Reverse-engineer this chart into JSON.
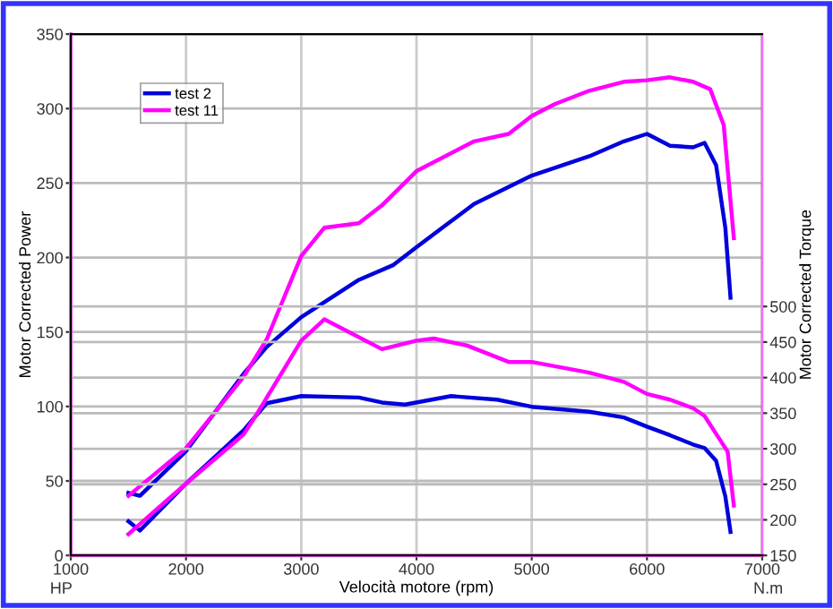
{
  "chart_data": {
    "type": "line",
    "xlabel": "Velocità motore (rpm)",
    "ylabel": "Motor Corrected Power",
    "y2label": "Motor Corrected Torque",
    "annotations": [
      "HP",
      "N.m"
    ],
    "xlim": [
      1000,
      7000
    ],
    "xticks": [
      1000,
      2000,
      3000,
      4000,
      5000,
      6000,
      7000
    ],
    "ylim": [
      0,
      350
    ],
    "yticks": [
      0,
      50,
      100,
      150,
      200,
      250,
      300,
      350
    ],
    "y2lim": [
      150,
      883
    ],
    "y2ticks": [
      150,
      200,
      250,
      300,
      350,
      400,
      450,
      500
    ],
    "grid": true,
    "legend": "top left",
    "marker": "none",
    "line_style": "solid",
    "series": [
      {
        "name": "test 2",
        "color": "#0000dd",
        "x": [
          1500,
          1600,
          2000,
          2500,
          2700,
          3000,
          3500,
          3800,
          4000,
          4500,
          5000,
          5500,
          5800,
          6000,
          6200,
          6400,
          6500,
          6600,
          6680,
          6725
        ],
        "values": [
          42,
          40,
          70,
          122,
          140,
          160,
          185,
          195,
          207,
          236,
          255,
          268,
          278,
          283,
          275,
          274,
          277,
          262,
          220,
          173
        ]
      },
      {
        "name": "test 11",
        "color": "#ff00ff",
        "x": [
          1500,
          2000,
          2500,
          2700,
          3000,
          3200,
          3500,
          3700,
          4000,
          4500,
          4800,
          5000,
          5200,
          5500,
          5800,
          6000,
          6200,
          6400,
          6549,
          6666,
          6754
        ],
        "values": [
          40,
          72,
          120,
          145,
          201,
          220,
          223,
          235,
          258,
          278,
          283,
          295,
          303,
          312,
          318,
          319,
          321,
          318,
          313,
          289,
          213
        ]
      },
      {
        "color": "#0000dd",
        "axis": "y2",
        "x": [
          1500,
          1600,
          2000,
          2500,
          2700,
          3000,
          3500,
          3700,
          3900,
          4300,
          4700,
          5000,
          5500,
          5800,
          6000,
          6200,
          6400,
          6500,
          6600,
          6680,
          6725
        ],
        "values": [
          198,
          185,
          251,
          326,
          364,
          374,
          372,
          365,
          362,
          374,
          369,
          359,
          352,
          344,
          331,
          319,
          306,
          301,
          283,
          233,
          183
        ]
      },
      {
        "color": "#ff00ff",
        "axis": "y2",
        "x": [
          1500,
          2000,
          2500,
          2600,
          3000,
          3200,
          3700,
          4000,
          4150,
          4440,
          4800,
          5000,
          5500,
          5800,
          6000,
          6200,
          6400,
          6500,
          6600,
          6700,
          6754
        ],
        "values": [
          180,
          251,
          320,
          345,
          452,
          482,
          440,
          452,
          455,
          445,
          422,
          422,
          407,
          394,
          377,
          369,
          357,
          346,
          321,
          296,
          220
        ]
      }
    ]
  }
}
